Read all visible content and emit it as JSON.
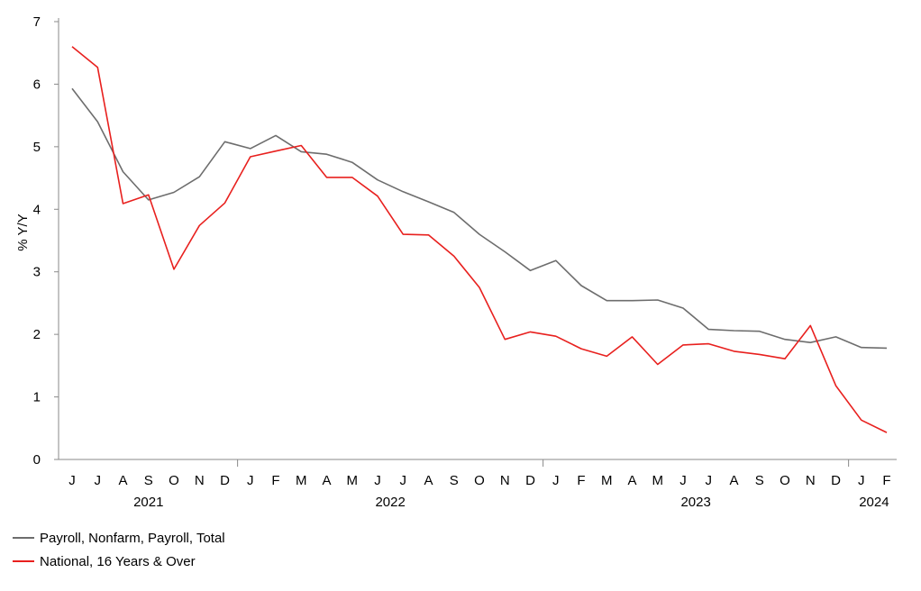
{
  "chart_data": {
    "type": "line",
    "ylabel": "% Y/Y",
    "ylim": [
      0,
      7
    ],
    "yticks": [
      "0",
      "1",
      "2",
      "3",
      "4",
      "5",
      "6",
      "7"
    ],
    "x": [
      "J",
      "J",
      "A",
      "S",
      "O",
      "N",
      "D",
      "J",
      "F",
      "M",
      "A",
      "M",
      "J",
      "J",
      "A",
      "S",
      "O",
      "N",
      "D",
      "J",
      "F",
      "M",
      "A",
      "M",
      "J",
      "J",
      "A",
      "S",
      "O",
      "N",
      "D",
      "J",
      "F"
    ],
    "year_labels": [
      {
        "label": "2021",
        "index": 3
      },
      {
        "label": "2022",
        "index": 12.5
      },
      {
        "label": "2023",
        "index": 24.5
      },
      {
        "label": "2024",
        "index": 31.5
      }
    ],
    "year_separators": [
      6.5,
      18.5,
      30.5
    ],
    "grid": false,
    "legend_position": "bottom-left",
    "series": [
      {
        "name": "Payroll, Nonfarm, Payroll, Total",
        "color": "#6d6d6d",
        "values": [
          5.93,
          5.4,
          4.6,
          4.15,
          4.27,
          4.52,
          5.08,
          4.97,
          5.18,
          4.92,
          4.88,
          4.75,
          4.47,
          4.28,
          4.12,
          3.95,
          3.6,
          3.32,
          3.02,
          3.18,
          2.78,
          2.54,
          2.54,
          2.55,
          2.42,
          2.08,
          2.06,
          2.05,
          1.92,
          1.87,
          1.96,
          1.79,
          1.78
        ]
      },
      {
        "name": "National, 16 Years & Over",
        "color": "#e8201e",
        "values": [
          6.6,
          6.27,
          4.09,
          4.23,
          3.04,
          3.74,
          4.1,
          4.84,
          4.93,
          5.02,
          4.51,
          4.51,
          4.21,
          3.6,
          3.59,
          3.25,
          2.75,
          1.92,
          2.04,
          1.97,
          1.77,
          1.65,
          1.96,
          1.52,
          1.83,
          1.85,
          1.73,
          1.68,
          1.61,
          2.14,
          1.18,
          0.63,
          0.43
        ]
      }
    ]
  }
}
